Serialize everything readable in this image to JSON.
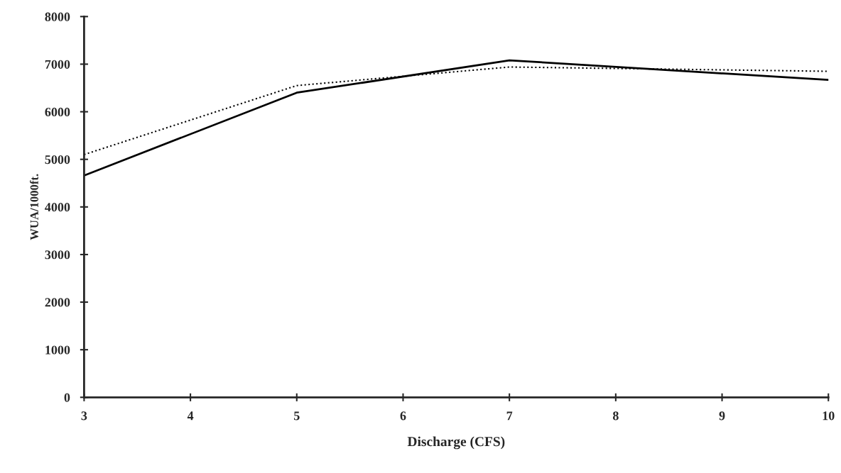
{
  "chart_data": {
    "type": "line",
    "xlabel": "Discharge (CFS)",
    "ylabel": "WUA/1000ft.",
    "x": [
      3,
      5,
      7,
      10
    ],
    "series": [
      {
        "color": "#000000",
        "values": [
          4660,
          6400,
          7080,
          6670
        ],
        "line_style": "solid"
      },
      {
        "color": "#000000",
        "values": [
          5100,
          6550,
          6940,
          6850
        ],
        "line_style": "dotted"
      }
    ],
    "xlim": [
      3,
      10
    ],
    "xticks": [
      3,
      4,
      5,
      6,
      7,
      8,
      9,
      10
    ],
    "ylim": [
      0,
      8000
    ],
    "yticks": [
      0,
      1000,
      2000,
      3000,
      4000,
      5000,
      6000,
      7000,
      8000
    ],
    "grid": false,
    "marker": "none"
  }
}
